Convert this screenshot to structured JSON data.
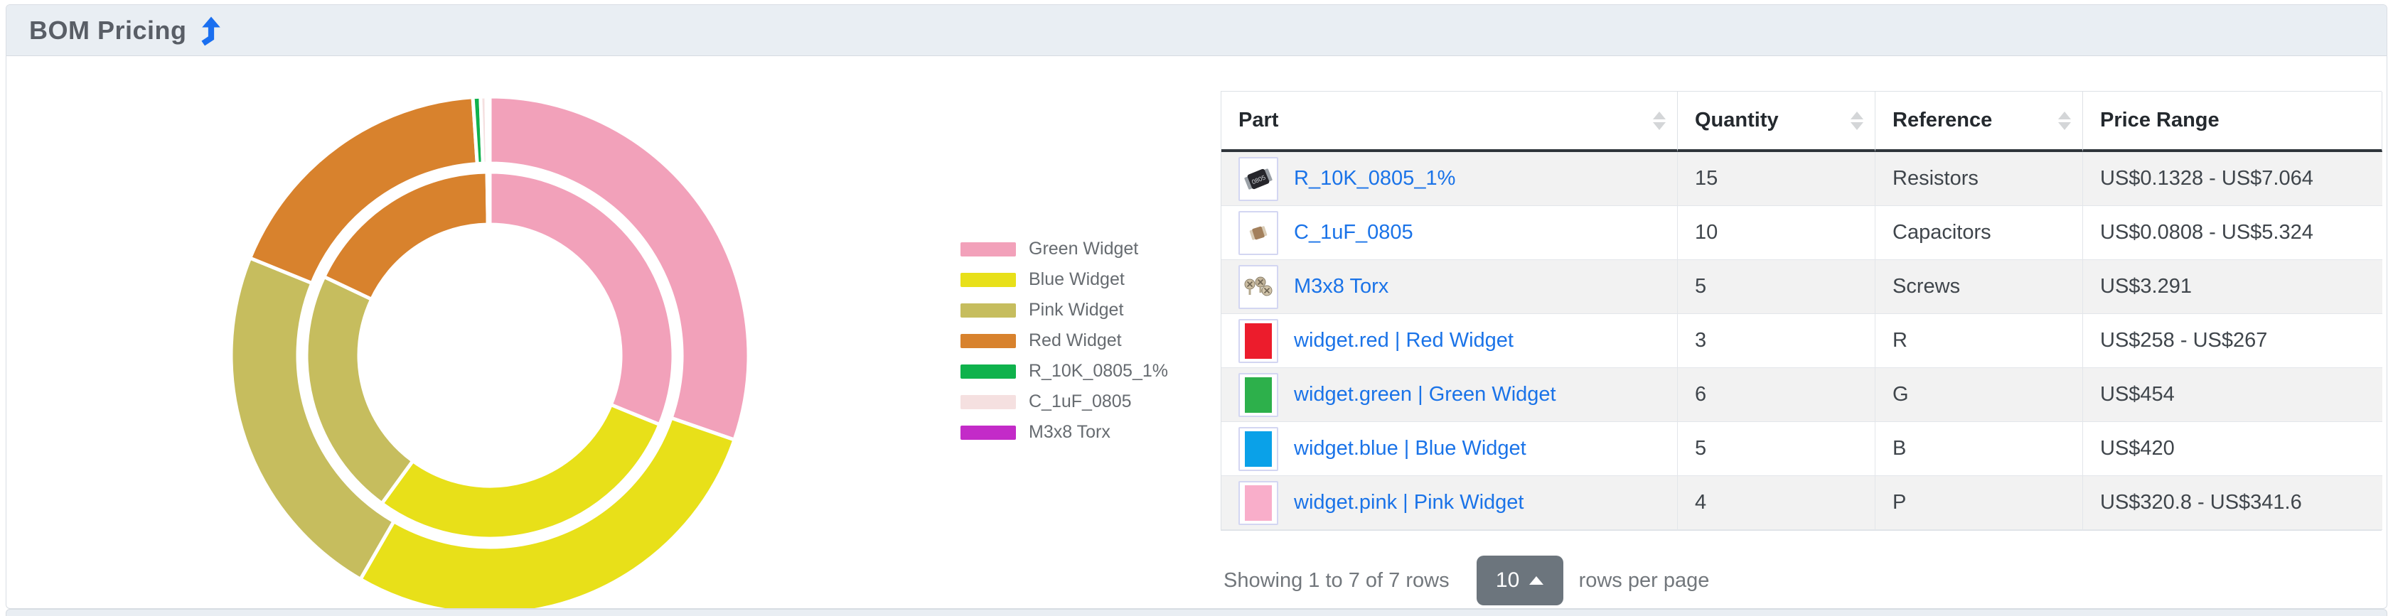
{
  "panel": {
    "title": "BOM Pricing",
    "title_arrow_color": "#1a6ff0"
  },
  "chart_data": {
    "type": "pie",
    "variant": "nested-donut",
    "description": "Two-ring donut: inner ring = price range low, outer ring = price range high, clockwise from top",
    "labels": [
      "Green Widget",
      "Blue Widget",
      "Pink Widget",
      "Red Widget",
      "R_10K_0805_1%",
      "C_1uF_0805",
      "M3x8 Torx"
    ],
    "colors": [
      "#f2a1ba",
      "#e8e019",
      "#c6bd5e",
      "#d8822d",
      "#0fb24c",
      "#f5e0e0",
      "#c32bc8"
    ],
    "series": [
      {
        "name": "price_low",
        "ring": "inner",
        "values": [
          454,
          420,
          320.8,
          258,
          0.1328,
          0.0808,
          3.291
        ]
      },
      {
        "name": "price_high",
        "ring": "outer",
        "values": [
          454,
          420,
          341.6,
          267,
          7.064,
          5.324,
          3.291
        ]
      }
    ],
    "start_angle_deg": 0,
    "direction": "clockwise",
    "legend_position": "right",
    "ring_radii": {
      "inner": [
        184,
        258
      ],
      "outer": [
        270,
        364
      ]
    },
    "segment_border_color": "#ffffff"
  },
  "legend": {
    "items": [
      {
        "label": "Green Widget",
        "color": "#f2a1ba"
      },
      {
        "label": "Blue Widget",
        "color": "#e8e019"
      },
      {
        "label": "Pink Widget",
        "color": "#c6bd5e"
      },
      {
        "label": "Red Widget",
        "color": "#d8822d"
      },
      {
        "label": "R_10K_0805_1%",
        "color": "#0fb24c"
      },
      {
        "label": "C_1uF_0805",
        "color": "#f5e0e0"
      },
      {
        "label": "M3x8 Torx",
        "color": "#c32bc8"
      }
    ]
  },
  "table": {
    "columns": [
      {
        "label": "Part",
        "sortable": true
      },
      {
        "label": "Quantity",
        "sortable": true
      },
      {
        "label": "Reference",
        "sortable": true
      },
      {
        "label": "Price Range",
        "sortable": false
      }
    ],
    "rows": [
      {
        "part": "R_10K_0805_1%",
        "thumb": "resistor-0805",
        "qty": "15",
        "reference": "Resistors",
        "price_range": "US$0.1328 - US$7.064"
      },
      {
        "part": "C_1uF_0805",
        "thumb": "capacitor-0805",
        "qty": "10",
        "reference": "Capacitors",
        "price_range": "US$0.0808 - US$5.324"
      },
      {
        "part": "M3x8 Torx",
        "thumb": "screws",
        "qty": "5",
        "reference": "Screws",
        "price_range": "US$3.291"
      },
      {
        "part": "widget.red | Red Widget",
        "thumb": "swatch",
        "swatch_color": "#ec1c2c",
        "qty": "3",
        "reference": "R",
        "price_range": "US$258 - US$267"
      },
      {
        "part": "widget.green | Green Widget",
        "thumb": "swatch",
        "swatch_color": "#2db04b",
        "qty": "6",
        "reference": "G",
        "price_range": "US$454"
      },
      {
        "part": "widget.blue | Blue Widget",
        "thumb": "swatch",
        "swatch_color": "#0aa1e8",
        "qty": "5",
        "reference": "B",
        "price_range": "US$420"
      },
      {
        "part": "widget.pink | Pink Widget",
        "thumb": "swatch",
        "swatch_color": "#f9aeca",
        "qty": "4",
        "reference": "P",
        "price_range": "US$320.8 - US$341.6"
      }
    ],
    "footer": {
      "showing_text": "Showing 1 to 7 of 7 rows",
      "page_size": "10",
      "rows_per_page_label": "rows per page"
    }
  }
}
